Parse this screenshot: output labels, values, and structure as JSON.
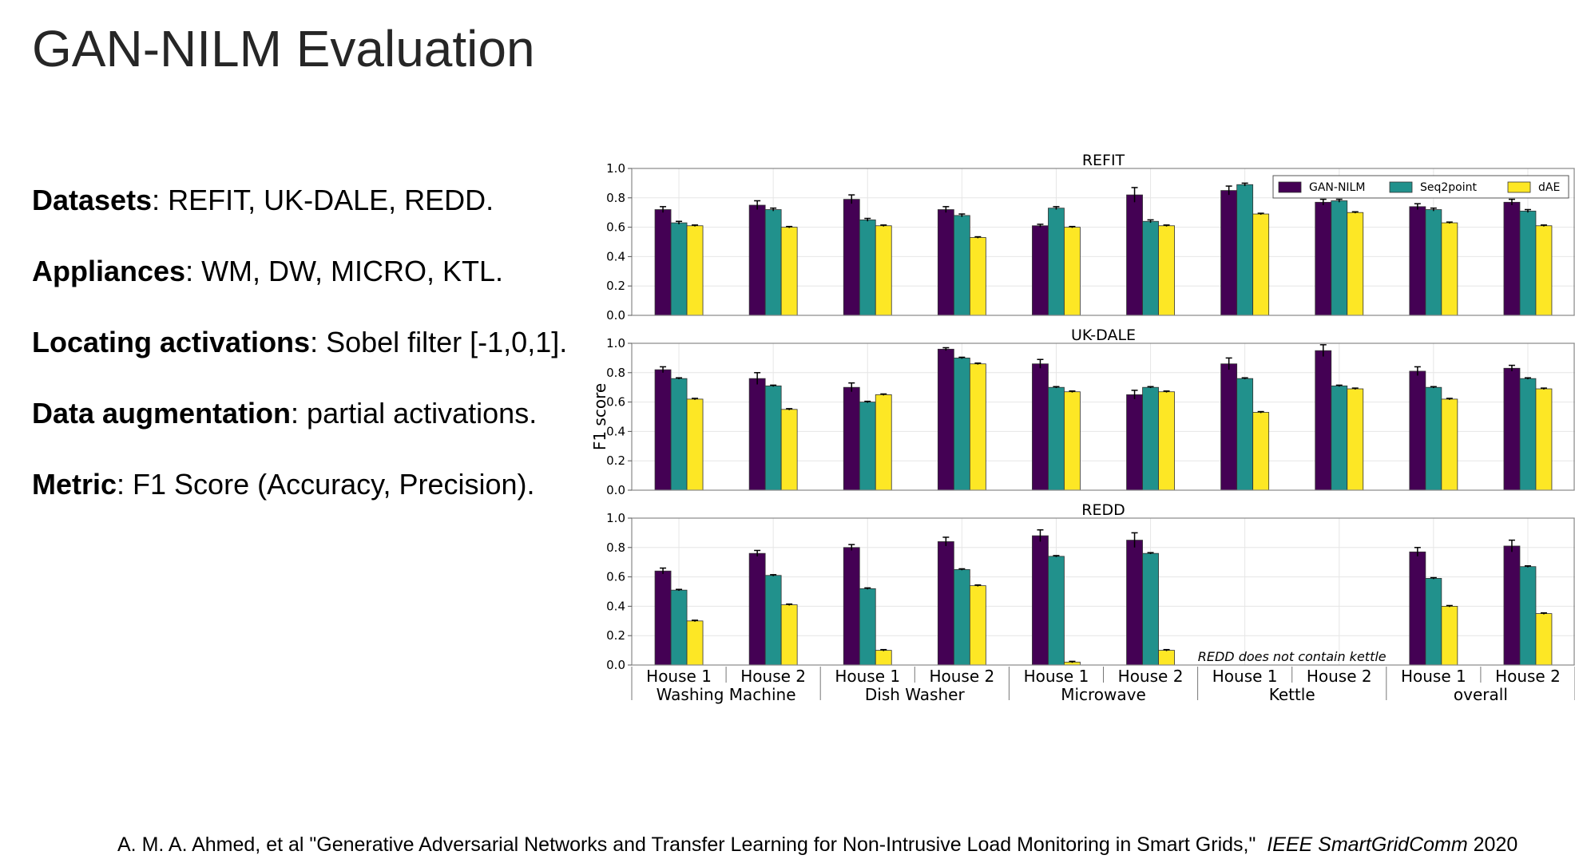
{
  "slide": {
    "title": "GAN-NILM Evaluation",
    "bullets": [
      {
        "label": "Datasets",
        "text": ": REFIT, UK-DALE, REDD."
      },
      {
        "label": "Appliances",
        "text": ": WM, DW, MICRO, KTL."
      },
      {
        "label": "Locating activations",
        "text": ": Sobel filter [-1,0,1]."
      },
      {
        "label": "Data augmentation",
        "text": ": partial activations."
      },
      {
        "label": "Metric",
        "text": ": F1 Score (Accuracy, Precision)."
      }
    ],
    "citation": {
      "main": "A. M. A. Ahmed, et al \"Generative Adversarial Networks and Transfer Learning for Non-Intrusive Load Monitoring in Smart Grids,\"",
      "venue": "IEEE SmartGridComm",
      "year": "2020"
    }
  },
  "chart_data": {
    "type": "bar",
    "ylabel": "F1 score",
    "ylim": [
      0,
      1.0
    ],
    "yticks": [
      "0.0",
      "0.2",
      "0.4",
      "0.6",
      "0.8",
      "1.0"
    ],
    "grid": true,
    "legend_position": "top-right",
    "categories": [
      "House 1",
      "House 2",
      "House 1",
      "House 2",
      "House 1",
      "House 2",
      "House 1",
      "House 2",
      "House 1",
      "House 2"
    ],
    "groups": [
      "Washing Machine",
      "Dish Washer",
      "Microwave",
      "Kettle",
      "overall"
    ],
    "colors": {
      "GAN-NILM": "#440154",
      "Seq2point": "#21918c",
      "dAE": "#fde725"
    },
    "panels": [
      {
        "title": "REFIT",
        "show_legend": true,
        "series": [
          {
            "name": "GAN-NILM",
            "values": [
              0.72,
              0.75,
              0.79,
              0.72,
              0.61,
              0.82,
              0.85,
              0.77,
              0.74,
              0.77
            ],
            "errors": [
              0.02,
              0.03,
              0.03,
              0.02,
              0.01,
              0.05,
              0.03,
              0.02,
              0.02,
              0.02
            ]
          },
          {
            "name": "Seq2point",
            "values": [
              0.63,
              0.72,
              0.65,
              0.68,
              0.73,
              0.64,
              0.89,
              0.78,
              0.72,
              0.71
            ],
            "errors": [
              0.01,
              0.01,
              0.01,
              0.01,
              0.01,
              0.01,
              0.01,
              0.01,
              0.01,
              0.01
            ]
          },
          {
            "name": "dAE",
            "values": [
              0.61,
              0.6,
              0.61,
              0.53,
              0.6,
              0.61,
              0.69,
              0.7,
              0.63,
              0.61
            ],
            "errors": [
              0.005,
              0.005,
              0.005,
              0.005,
              0.005,
              0.005,
              0.005,
              0.005,
              0.005,
              0.005
            ]
          }
        ]
      },
      {
        "title": "UK-DALE",
        "show_legend": false,
        "series": [
          {
            "name": "GAN-NILM",
            "values": [
              0.82,
              0.76,
              0.7,
              0.96,
              0.86,
              0.65,
              0.86,
              0.95,
              0.81,
              0.83
            ],
            "errors": [
              0.02,
              0.04,
              0.03,
              0.01,
              0.03,
              0.03,
              0.04,
              0.04,
              0.03,
              0.02
            ]
          },
          {
            "name": "Seq2point",
            "values": [
              0.76,
              0.71,
              0.6,
              0.9,
              0.7,
              0.7,
              0.76,
              0.71,
              0.7,
              0.76
            ],
            "errors": [
              0.005,
              0.005,
              0.005,
              0.005,
              0.005,
              0.005,
              0.005,
              0.005,
              0.005,
              0.005
            ]
          },
          {
            "name": "dAE",
            "values": [
              0.62,
              0.55,
              0.65,
              0.86,
              0.67,
              0.67,
              0.53,
              0.69,
              0.62,
              0.69
            ],
            "errors": [
              0.005,
              0.005,
              0.005,
              0.005,
              0.005,
              0.005,
              0.005,
              0.005,
              0.005,
              0.005
            ]
          }
        ]
      },
      {
        "title": "REDD",
        "show_legend": false,
        "annotation": "REDD does not contain kettle",
        "series": [
          {
            "name": "GAN-NILM",
            "values": [
              0.64,
              0.76,
              0.8,
              0.84,
              0.88,
              0.85,
              null,
              null,
              0.77,
              0.81
            ],
            "errors": [
              0.02,
              0.02,
              0.02,
              0.03,
              0.04,
              0.05,
              null,
              null,
              0.03,
              0.04
            ]
          },
          {
            "name": "Seq2point",
            "values": [
              0.51,
              0.61,
              0.52,
              0.65,
              0.74,
              0.76,
              null,
              null,
              0.59,
              0.67
            ],
            "errors": [
              0.005,
              0.005,
              0.005,
              0.005,
              0.005,
              0.005,
              null,
              null,
              0.005,
              0.005
            ]
          },
          {
            "name": "dAE",
            "values": [
              0.3,
              0.41,
              0.1,
              0.54,
              0.02,
              0.1,
              null,
              null,
              0.4,
              0.35
            ],
            "errors": [
              0.005,
              0.005,
              0.005,
              0.005,
              0.005,
              0.005,
              null,
              null,
              0.005,
              0.005
            ]
          }
        ]
      }
    ]
  }
}
